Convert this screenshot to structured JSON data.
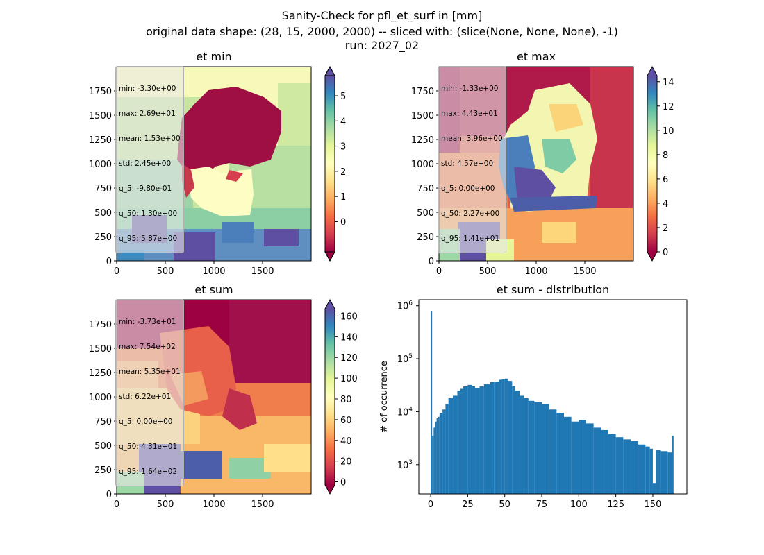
{
  "figure": {
    "title_lines": [
      "Sanity-Check for pfl_et_surf in [mm]",
      "original data shape: (28, 15, 2000, 2000) -- sliced with: (slice(None, None, None), -1)",
      "run: 2027_02"
    ]
  },
  "panels": [
    {
      "title": "et min",
      "stats": [
        "min: -3.30e+00",
        "max: 2.69e+01",
        "mean: 1.53e+00",
        "std: 2.45e+00",
        "q_5: -9.80e-01",
        "q_50: 1.30e+00",
        "q_95: 5.87e+00"
      ],
      "colorbar": {
        "ticks": [
          0,
          1,
          2,
          3,
          4,
          5
        ],
        "range": [
          -1.2,
          5.8
        ],
        "extend": "both",
        "colormap": "Spectral"
      },
      "x_ticks": [
        0,
        500,
        1000,
        1500
      ],
      "y_ticks": [
        0,
        250,
        500,
        750,
        1000,
        1250,
        1500,
        1750
      ]
    },
    {
      "title": "et max",
      "stats": [
        "min: -1.33e+00",
        "max: 4.43e+01",
        "mean: 3.96e+00",
        "std: 4.57e+00",
        "q_5: 0.00e+00",
        "q_50: 2.27e+00",
        "q_95: 1.41e+01"
      ],
      "colorbar": {
        "ticks": [
          0,
          2,
          4,
          6,
          8,
          10,
          12,
          14
        ],
        "range": [
          0,
          14.5
        ],
        "extend": "both",
        "colormap": "Spectral"
      },
      "x_ticks": [
        0,
        500,
        1000,
        1500
      ],
      "y_ticks": [
        0,
        250,
        500,
        750,
        1000,
        1250,
        1500,
        1750
      ]
    },
    {
      "title": "et sum",
      "stats": [
        "min: -3.73e+01",
        "max: 7.54e+02",
        "mean: 5.35e+01",
        "std: 6.22e+01",
        "q_5: 0.00e+00",
        "q_50: 4.31e+01",
        "q_95: 1.64e+02"
      ],
      "colorbar": {
        "ticks": [
          0,
          20,
          40,
          60,
          80,
          100,
          120,
          140,
          160
        ],
        "range": [
          -3,
          167
        ],
        "extend": "both",
        "colormap": "Spectral"
      },
      "x_ticks": [
        0,
        500,
        1000,
        1500
      ],
      "y_ticks": [
        0,
        250,
        500,
        750,
        1000,
        1250,
        1500,
        1750
      ]
    }
  ],
  "histogram": {
    "title": "et sum - distribution",
    "ylabel": "# of occurrence",
    "x_ticks": [
      0,
      25,
      50,
      75,
      100,
      125,
      150
    ],
    "y_ticks": [
      "10^3",
      "10^4",
      "10^5",
      "10^6"
    ],
    "color": "#1f77b4"
  },
  "chart_data": {
    "type": "bar",
    "title": "et sum - distribution",
    "xlabel": "",
    "ylabel": "# of occurrence",
    "y_scale": "log",
    "xlim": [
      -8,
      173
    ],
    "ylim": [
      280,
      1300000
    ],
    "x": [
      0,
      1,
      2,
      3,
      4,
      5,
      6,
      8,
      10,
      12,
      15,
      18,
      20,
      22,
      25,
      28,
      30,
      33,
      36,
      40,
      43,
      46,
      48,
      50,
      52,
      55,
      57,
      60,
      63,
      66,
      70,
      75,
      80,
      85,
      90,
      95,
      100,
      105,
      110,
      115,
      120,
      125,
      130,
      135,
      140,
      145,
      148,
      150,
      152,
      155,
      160,
      163
    ],
    "values": [
      800000,
      3500,
      5000,
      6500,
      7500,
      8000,
      9500,
      11000,
      14000,
      18000,
      20000,
      25000,
      27000,
      30000,
      32000,
      30000,
      28000,
      30000,
      33000,
      36000,
      37000,
      40000,
      41000,
      42000,
      38000,
      30000,
      25000,
      20000,
      18000,
      16000,
      15000,
      14000,
      11000,
      9500,
      8000,
      6500,
      7000,
      6000,
      5000,
      4500,
      3800,
      3300,
      3000,
      2800,
      2400,
      2200,
      2000,
      450,
      1900,
      1800,
      1700,
      3500
    ]
  }
}
